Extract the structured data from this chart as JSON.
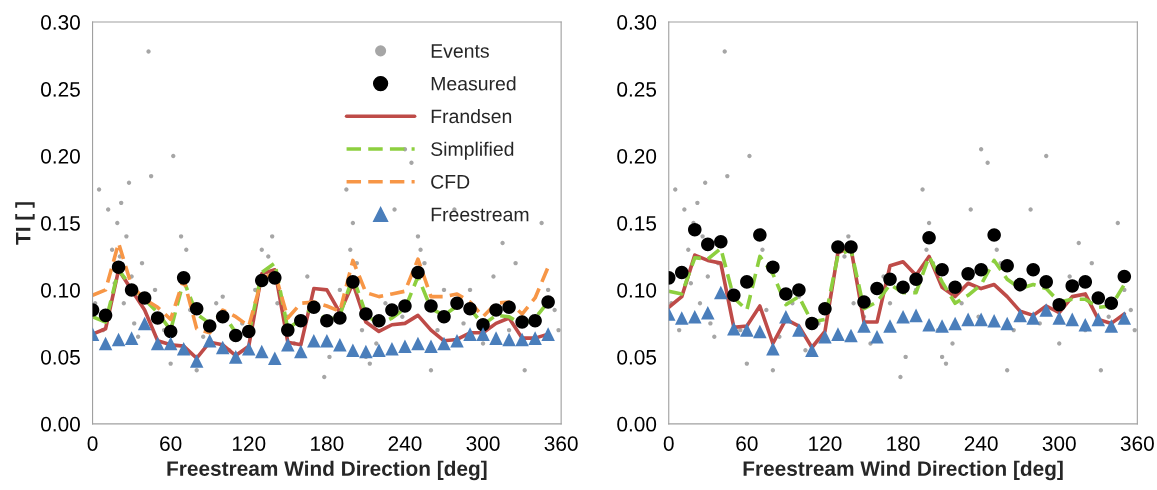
{
  "chart_data": [
    {
      "type": "scatter",
      "xlabel": "Freestream Wind Direction [deg]",
      "ylabel": "TI [ ]",
      "xlim": [
        0,
        360
      ],
      "xticks": [
        0,
        60,
        120,
        180,
        240,
        300,
        360
      ],
      "ylim": [
        0,
        0.3
      ],
      "yticks": [
        {
          "value": 0,
          "label": "0.00"
        },
        {
          "value": 0.05,
          "label": "0.05"
        },
        {
          "value": 0.1,
          "label": "0.10"
        },
        {
          "value": 0.15,
          "label": "0.15"
        },
        {
          "value": 0.2,
          "label": "0.20"
        },
        {
          "value": 0.25,
          "label": "0.25"
        },
        {
          "value": 0.3,
          "label": "0.30"
        }
      ],
      "grid": false,
      "legend": "top right",
      "x": [
        0,
        10,
        20,
        30,
        40,
        50,
        60,
        70,
        80,
        90,
        100,
        110,
        120,
        130,
        140,
        150,
        160,
        170,
        180,
        190,
        200,
        210,
        220,
        230,
        240,
        250,
        260,
        270,
        280,
        290,
        300,
        310,
        320,
        330,
        340,
        350
      ],
      "series": [
        {
          "name": "Events",
          "marker": "circle",
          "color": "#a6a6a6",
          "x": [
            2,
            5,
            8,
            12,
            15,
            17,
            19,
            21,
            22,
            24,
            26,
            28,
            30,
            32,
            35,
            38,
            43,
            45,
            48,
            55,
            60,
            62,
            68,
            72,
            75,
            80,
            85,
            95,
            100,
            105,
            115,
            125,
            130,
            135,
            138,
            142,
            150,
            155,
            165,
            170,
            178,
            182,
            190,
            195,
            198,
            200,
            203,
            207,
            210,
            213,
            218,
            225,
            232,
            238,
            240,
            245,
            250,
            252,
            255,
            260,
            265,
            270,
            278,
            285,
            290,
            300,
            308,
            315,
            320,
            325,
            332,
            338,
            345,
            350,
            355,
            358
          ],
          "values": [
            0.09,
            0.175,
            0.07,
            0.16,
            0.13,
            0.105,
            0.15,
            0.125,
            0.165,
            0.09,
            0.14,
            0.18,
            0.11,
            0.075,
            0.065,
            0.12,
            0.278,
            0.185,
            0.1,
            0.07,
            0.045,
            0.2,
            0.14,
            0.13,
            0.085,
            0.04,
            0.065,
            0.09,
            0.095,
            0.055,
            0.075,
            0.1,
            0.13,
            0.125,
            0.14,
            0.09,
            0.08,
            0.06,
            0.11,
            null,
            0.035,
            0.05,
            0.1,
            0.175,
            0.13,
            0.15,
            0.12,
            0.07,
            0.05,
            0.045,
            0.06,
            0.09,
            0.16,
            0.08,
            0.205,
            0.195,
            0.14,
            0.13,
            0.12,
            0.04,
            0.07,
            0.1,
            0.16,
            0.075,
            0.1,
            0.06,
            0.11,
            0.135,
            0.07,
            0.12,
            0.04,
            0.08,
            0.15,
            0.1,
            0.085,
            0.07
          ]
        },
        {
          "name": "Measured",
          "marker": "circle",
          "color": "#000000",
          "values": [
            0.085,
            0.081,
            0.117,
            0.1,
            0.094,
            0.079,
            0.069,
            0.109,
            0.086,
            0.073,
            0.08,
            0.066,
            0.069,
            0.107,
            0.109,
            0.07,
            0.077,
            0.087,
            0.077,
            0.079,
            0.106,
            0.082,
            0.077,
            0.085,
            0.088,
            0.113,
            0.088,
            0.08,
            0.09,
            0.086,
            0.074,
            0.085,
            0.087,
            0.076,
            0.077,
            0.091
          ]
        },
        {
          "name": "Frandsen",
          "type": "line",
          "line_style": "solid",
          "color": "#be4b48",
          "values": [
            0.067,
            0.071,
            0.115,
            0.1,
            0.085,
            0.062,
            0.059,
            0.058,
            0.049,
            0.061,
            0.059,
            0.051,
            0.058,
            0.112,
            0.115,
            0.061,
            0.059,
            0.101,
            0.1,
            0.083,
            0.105,
            0.076,
            0.069,
            0.074,
            0.075,
            0.081,
            0.07,
            0.062,
            0.063,
            0.068,
            0.068,
            0.075,
            0.079,
            0.064,
            0.064,
            0.067
          ]
        },
        {
          "name": "Simplified",
          "type": "line",
          "line_style": "dashed",
          "color": "#8dcf3f",
          "values": [
            0.08,
            0.076,
            0.115,
            0.102,
            0.093,
            0.083,
            0.07,
            0.107,
            0.082,
            0.075,
            0.083,
            0.068,
            0.067,
            0.113,
            0.12,
            0.071,
            0.078,
            0.088,
            0.077,
            0.081,
            0.11,
            0.082,
            0.074,
            0.079,
            0.086,
            0.11,
            0.086,
            0.081,
            0.088,
            0.086,
            0.074,
            0.081,
            0.08,
            0.074,
            0.079,
            0.091
          ]
        },
        {
          "name": "CFD",
          "type": "line",
          "line_style": "dashed",
          "color": "#f79646",
          "values": [
            0.096,
            0.1,
            0.135,
            0.103,
            0.093,
            0.087,
            0.078,
            0.108,
            0.071,
            0.068,
            0.085,
            0.08,
            0.073,
            0.108,
            0.113,
            0.079,
            0.09,
            0.091,
            0.088,
            0.084,
            0.122,
            0.098,
            0.095,
            0.097,
            0.099,
            0.123,
            0.095,
            0.095,
            0.097,
            0.091,
            0.08,
            0.09,
            0.091,
            0.082,
            0.094,
            0.117
          ]
        },
        {
          "name": "Freestream",
          "marker": "triangle",
          "color": "#4a7ebb",
          "values": [
            0.067,
            0.06,
            0.063,
            0.064,
            0.075,
            0.06,
            0.06,
            0.056,
            0.047,
            0.062,
            0.057,
            0.05,
            0.056,
            0.054,
            0.049,
            0.059,
            0.054,
            0.062,
            0.062,
            0.059,
            0.055,
            0.054,
            0.055,
            0.056,
            0.058,
            0.06,
            0.058,
            0.06,
            0.062,
            0.067,
            0.067,
            0.064,
            0.063,
            0.063,
            0.064,
            0.067
          ]
        }
      ]
    },
    {
      "type": "scatter",
      "xlabel": "Freestream Wind Direction [deg]",
      "xlim": [
        0,
        360
      ],
      "xticks": [
        0,
        60,
        120,
        180,
        240,
        300,
        360
      ],
      "ylim": [
        0,
        0.3
      ],
      "yticks": [
        {
          "value": 0,
          "label": "0.00"
        },
        {
          "value": 0.05,
          "label": "0.05"
        },
        {
          "value": 0.1,
          "label": "0.10"
        },
        {
          "value": 0.15,
          "label": "0.15"
        },
        {
          "value": 0.2,
          "label": "0.20"
        },
        {
          "value": 0.25,
          "label": "0.25"
        },
        {
          "value": 0.3,
          "label": "0.30"
        }
      ],
      "grid": false,
      "x": [
        0,
        10,
        20,
        30,
        40,
        50,
        60,
        70,
        80,
        90,
        100,
        110,
        120,
        130,
        140,
        150,
        160,
        170,
        180,
        190,
        200,
        210,
        220,
        230,
        240,
        250,
        260,
        270,
        280,
        290,
        300,
        310,
        320,
        330,
        340,
        350
      ],
      "series": [
        {
          "marker": "circle",
          "color": "#a6a6a6",
          "x": [
            2,
            5,
            8,
            12,
            15,
            17,
            19,
            21,
            22,
            24,
            26,
            28,
            30,
            32,
            35,
            38,
            43,
            45,
            48,
            55,
            60,
            62,
            68,
            72,
            75,
            80,
            85,
            95,
            100,
            105,
            115,
            125,
            130,
            135,
            138,
            142,
            150,
            155,
            165,
            170,
            178,
            182,
            190,
            195,
            198,
            200,
            203,
            207,
            210,
            213,
            218,
            225,
            232,
            238,
            240,
            245,
            250,
            252,
            255,
            260,
            265,
            270,
            278,
            285,
            290,
            300,
            308,
            315,
            320,
            325,
            332,
            338,
            345,
            350,
            355,
            358
          ],
          "values": [
            0.09,
            0.175,
            0.07,
            0.16,
            0.13,
            0.105,
            0.15,
            null,
            0.165,
            0.09,
            0.14,
            0.18,
            0.11,
            0.075,
            0.065,
            0.12,
            0.278,
            0.185,
            0.1,
            0.07,
            0.045,
            0.2,
            null,
            0.13,
            0.085,
            0.04,
            0.065,
            0.09,
            0.095,
            0.055,
            0.075,
            null,
            null,
            0.125,
            0.14,
            0.09,
            0.08,
            0.06,
            0.11,
            0.09,
            0.035,
            0.05,
            0.1,
            0.175,
            0.13,
            0.15,
            0.12,
            0.07,
            0.05,
            0.045,
            0.06,
            0.09,
            0.16,
            0.08,
            0.205,
            0.195,
            null,
            0.13,
            0.12,
            0.04,
            0.07,
            0.1,
            0.16,
            0.075,
            0.2,
            0.06,
            0.11,
            0.135,
            0.07,
            0.12,
            0.04,
            0.08,
            0.15,
            0.1,
            0.085,
            0.07
          ]
        },
        {
          "marker": "circle",
          "color": "#000000",
          "values": [
            0.109,
            0.113,
            0.145,
            0.134,
            0.136,
            0.096,
            0.106,
            0.141,
            0.117,
            0.097,
            0.1,
            0.075,
            0.086,
            0.132,
            0.132,
            0.091,
            0.101,
            0.108,
            0.102,
            0.108,
            0.139,
            0.115,
            0.102,
            0.112,
            0.115,
            0.141,
            0.118,
            0.104,
            0.115,
            0.106,
            0.089,
            0.103,
            0.106,
            0.094,
            0.09,
            0.11
          ]
        },
        {
          "type": "line",
          "line_style": "solid",
          "color": "#be4b48",
          "values": [
            0.087,
            0.095,
            0.126,
            0.122,
            0.12,
            0.072,
            0.073,
            0.088,
            0.06,
            0.078,
            0.073,
            0.057,
            0.069,
            0.128,
            0.131,
            0.076,
            0.076,
            0.118,
            0.121,
            0.111,
            0.125,
            0.102,
            0.095,
            0.105,
            0.101,
            0.104,
            0.095,
            0.084,
            0.081,
            0.088,
            0.083,
            0.095,
            0.097,
            0.078,
            0.075,
            0.082
          ]
        },
        {
          "type": "line",
          "line_style": "dashed",
          "color": "#8dcf3f",
          "values": [
            0.099,
            0.097,
            0.124,
            0.123,
            0.131,
            0.094,
            0.085,
            0.125,
            0.112,
            0.089,
            0.095,
            0.076,
            0.078,
            0.126,
            0.13,
            0.086,
            0.091,
            0.104,
            0.098,
            0.098,
            0.125,
            0.106,
            0.09,
            0.096,
            0.104,
            0.122,
            0.108,
            0.101,
            0.104,
            0.101,
            0.091,
            0.093,
            0.093,
            0.087,
            0.088,
            0.104
          ]
        },
        {
          "marker": "triangle",
          "color": "#4a7ebb",
          "values": [
            0.082,
            0.079,
            0.08,
            0.083,
            0.098,
            0.071,
            0.07,
            0.069,
            0.056,
            0.08,
            0.07,
            0.055,
            0.065,
            0.067,
            0.066,
            0.073,
            0.065,
            0.073,
            0.08,
            0.081,
            0.074,
            0.073,
            0.075,
            0.078,
            0.078,
            0.077,
            0.075,
            0.081,
            0.079,
            0.085,
            0.079,
            0.078,
            0.074,
            0.078,
            0.073,
            0.079
          ]
        }
      ]
    }
  ]
}
